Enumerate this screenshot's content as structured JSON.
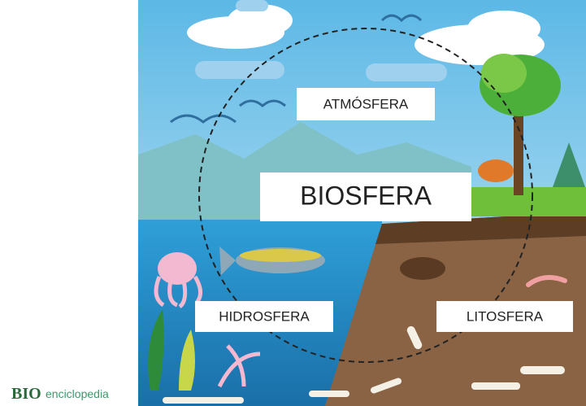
{
  "labels": {
    "atmosphere": "ATMÓSFERA",
    "biosphere": "BIOSFERA",
    "hydrosphere": "HIDROSFERA",
    "lithosphere": "LITOSFERA"
  },
  "logo": {
    "brand": "BIO",
    "text": "enciclopedia"
  }
}
